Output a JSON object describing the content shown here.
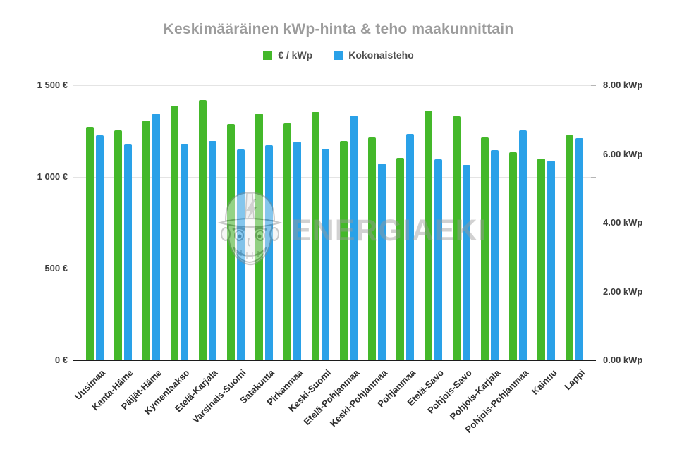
{
  "title": "Keskimääräinen kWp-hinta & teho maakunnittain",
  "legend": [
    {
      "label": "€ / kWp",
      "color": "#44b82a"
    },
    {
      "label": "Kokonaisteho",
      "color": "#2aa1e8"
    }
  ],
  "watermark": {
    "text": "ENERGIAEKI",
    "mascot": "hard-hat-mascot-icon"
  },
  "left_axis": {
    "ticks": [
      "0 €",
      "500 €",
      "1 000 €",
      "1 500 €"
    ]
  },
  "right_axis": {
    "ticks": [
      "0.00 kWp",
      "2.00 kWp",
      "4.00 kWp",
      "6.00 kWp",
      "8.00 kWp"
    ]
  },
  "chart_data": {
    "type": "bar",
    "title": "Keskimääräinen kWp-hinta & teho maakunnittain",
    "categories": [
      "Uusimaa",
      "Kanta-Häme",
      "Päijät-Häme",
      "Kymenlaakso",
      "Etelä-Karjala",
      "Varsinais-Suomi",
      "Satakunta",
      "Pirkanmaa",
      "Keski-Suomi",
      "Etelä-Pohjanmaa",
      "Keski-Pohjanmaa",
      "Pohjanmaa",
      "Etelä-Savo",
      "Pohjois-Savo",
      "Pohjois-Karjala",
      "Pohjois-Pohjanmaa",
      "Kainuu",
      "Lappi"
    ],
    "series": [
      {
        "name": "€ / kWp",
        "axis": "left",
        "unit": "€",
        "color": "#44b82a",
        "values": [
          1273,
          1253,
          1308,
          1389,
          1420,
          1290,
          1346,
          1293,
          1353,
          1196,
          1217,
          1104,
          1362,
          1330,
          1214,
          1133,
          1101,
          1225
        ]
      },
      {
        "name": "Kokonaisteho",
        "axis": "right",
        "unit": "kWp",
        "color": "#2aa1e8",
        "values": [
          6.54,
          6.3,
          7.17,
          6.3,
          6.37,
          6.14,
          6.26,
          6.35,
          6.16,
          7.12,
          5.73,
          6.58,
          5.85,
          5.68,
          6.11,
          6.68,
          5.81,
          6.46
        ]
      }
    ],
    "left_ylim": [
      0,
      1500
    ],
    "right_ylim": [
      0,
      8
    ],
    "grid": true,
    "legend_position": "top"
  }
}
